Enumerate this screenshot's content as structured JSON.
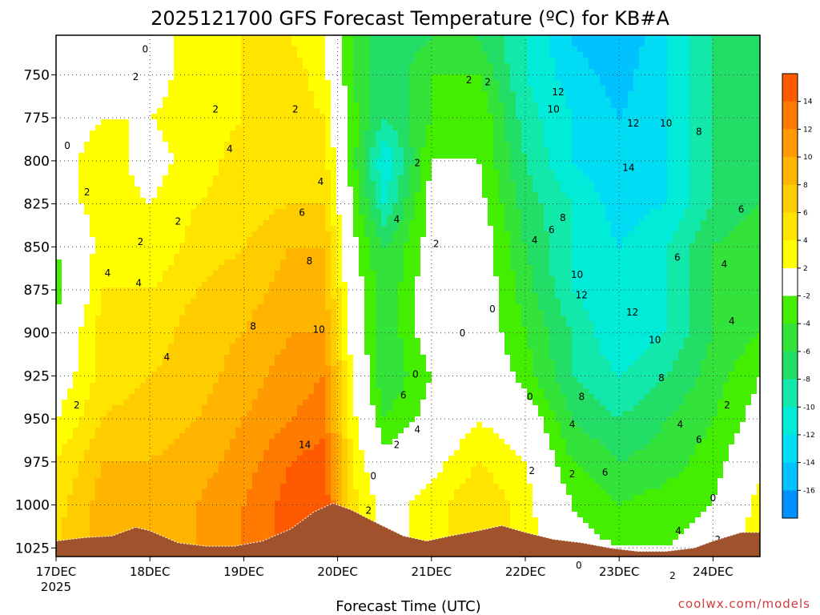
{
  "chart_data": {
    "type": "heatmap",
    "title": "2025121700 GFS Forecast Temperature (ºC) for KB#A",
    "xlabel": "Forecast Time (UTC)",
    "ylabel": "",
    "credit": "coolwx.com/models",
    "x_ticks": [
      "17DEC",
      "18DEC",
      "19DEC",
      "20DEC",
      "21DEC",
      "22DEC",
      "23DEC",
      "24DEC"
    ],
    "x_year": "2025",
    "xlim_days": [
      17.0,
      24.5
    ],
    "y_ticks": [
      750,
      775,
      800,
      825,
      850,
      875,
      900,
      925,
      950,
      975,
      1000,
      1025
    ],
    "ylim_hpa": [
      1030,
      727
    ],
    "colorbar": {
      "ticks": [
        "14",
        "12",
        "10",
        "8",
        "6",
        "4",
        "2",
        "-2",
        "-4",
        "-6",
        "-8",
        "-10",
        "-12",
        "-14",
        "-16"
      ],
      "colors": [
        "#ff5a00",
        "#ff7a00",
        "#ff9a00",
        "#ffb400",
        "#ffcc00",
        "#ffe400",
        "#ffff00",
        "#ffffff",
        "#44ee00",
        "#33e33a",
        "#22dd66",
        "#11e8aa",
        "#00ecd8",
        "#00dcf4",
        "#00c2ff",
        "#0090ff"
      ]
    },
    "columns_time": [
      17.0,
      17.5,
      18.0,
      18.5,
      19.0,
      19.5,
      19.85,
      20.15,
      20.5,
      21.0,
      21.5,
      22.0,
      22.5,
      23.0,
      23.5,
      24.0,
      24.5
    ],
    "levels_hpa": [
      730,
      750,
      775,
      800,
      825,
      850,
      875,
      900,
      925,
      950,
      975,
      1000,
      1025
    ],
    "temperature_c": [
      [
        -1,
        2,
        1,
        3,
        4,
        4,
        2,
        -4,
        -8,
        -6,
        -6,
        -10,
        -14,
        -16,
        -12,
        -8,
        -6
      ],
      [
        0,
        2,
        1,
        3,
        4,
        5,
        3,
        -4,
        -8,
        -4,
        -4,
        -10,
        -13,
        -15,
        -12,
        -8,
        -6
      ],
      [
        1,
        2,
        2,
        3,
        4,
        5,
        4,
        -3,
        -8,
        -4,
        -2,
        -9,
        -12,
        -14,
        -12,
        -8,
        -6
      ],
      [
        1,
        3,
        1,
        3,
        5,
        5,
        5,
        -3,
        -12,
        -2,
        -2,
        -8,
        -12,
        -14,
        -12,
        -8,
        -6
      ],
      [
        1,
        3,
        2,
        4,
        5,
        6,
        6,
        -2,
        -10,
        -1,
        -1,
        -7,
        -10,
        -13,
        -12,
        -8,
        -6
      ],
      [
        -2,
        3,
        2,
        5,
        6,
        8,
        8,
        -1,
        -6,
        -1,
        0,
        -6,
        -10,
        -12,
        -10,
        -6,
        -4
      ],
      [
        -3,
        4,
        4,
        6,
        7,
        9,
        9,
        0,
        -6,
        0,
        0,
        -5,
        -10,
        -12,
        -10,
        -6,
        -4
      ],
      [
        -1,
        5,
        5,
        7,
        8,
        10,
        10,
        1,
        -6,
        0,
        0,
        -4,
        -8,
        -12,
        -10,
        -6,
        -4
      ],
      [
        0,
        5,
        6,
        7,
        9,
        11,
        12,
        2,
        -6,
        -2,
        1,
        -3,
        -8,
        -10,
        -8,
        -5,
        -2
      ],
      [
        2,
        6,
        7,
        8,
        10,
        12,
        13,
        3,
        -4,
        -1,
        2,
        0,
        -6,
        -8,
        -6,
        -4,
        -1
      ],
      [
        4,
        8,
        8,
        9,
        11,
        14,
        15,
        4,
        -1,
        1,
        4,
        2,
        -4,
        -6,
        -5,
        -3,
        1
      ],
      [
        5,
        9,
        9,
        10,
        12,
        15,
        16,
        5,
        1,
        3,
        6,
        3,
        -2,
        -4,
        -3,
        -2,
        3
      ],
      [
        6,
        9,
        9,
        10,
        12,
        15,
        16,
        5,
        1,
        3,
        6,
        3,
        -1,
        -2,
        -2,
        -1,
        4
      ]
    ],
    "contour_labels": [
      {
        "t": 17.95,
        "p": 737,
        "v": "0"
      },
      {
        "t": 17.85,
        "p": 753,
        "v": "2"
      },
      {
        "t": 18.7,
        "p": 772,
        "v": "2"
      },
      {
        "t": 19.55,
        "p": 772,
        "v": "2"
      },
      {
        "t": 17.12,
        "p": 793,
        "v": "0"
      },
      {
        "t": 18.85,
        "p": 795,
        "v": "4"
      },
      {
        "t": 17.33,
        "p": 820,
        "v": "2"
      },
      {
        "t": 18.3,
        "p": 837,
        "v": "2"
      },
      {
        "t": 19.82,
        "p": 814,
        "v": "4"
      },
      {
        "t": 19.62,
        "p": 832,
        "v": "6"
      },
      {
        "t": 17.9,
        "p": 849,
        "v": "2"
      },
      {
        "t": 17.55,
        "p": 867,
        "v": "4"
      },
      {
        "t": 17.88,
        "p": 873,
        "v": "4"
      },
      {
        "t": 19.7,
        "p": 860,
        "v": "8"
      },
      {
        "t": 19.1,
        "p": 898,
        "v": "8"
      },
      {
        "t": 19.8,
        "p": 900,
        "v": "10"
      },
      {
        "t": 18.18,
        "p": 916,
        "v": "4"
      },
      {
        "t": 17.22,
        "p": 944,
        "v": "2"
      },
      {
        "t": 19.65,
        "p": 967,
        "v": "14"
      },
      {
        "t": 21.6,
        "p": 756,
        "v": "2"
      },
      {
        "t": 21.4,
        "p": 755,
        "v": "2"
      },
      {
        "t": 20.85,
        "p": 803,
        "v": "2"
      },
      {
        "t": 20.63,
        "p": 836,
        "v": "4"
      },
      {
        "t": 21.05,
        "p": 850,
        "v": "2"
      },
      {
        "t": 21.65,
        "p": 888,
        "v": "0"
      },
      {
        "t": 21.33,
        "p": 902,
        "v": "0"
      },
      {
        "t": 20.83,
        "p": 926,
        "v": "0"
      },
      {
        "t": 20.7,
        "p": 938,
        "v": "6"
      },
      {
        "t": 20.85,
        "p": 958,
        "v": "4"
      },
      {
        "t": 20.63,
        "p": 967,
        "v": "2"
      },
      {
        "t": 20.38,
        "p": 985,
        "v": "0"
      },
      {
        "t": 20.33,
        "p": 1005,
        "v": "2"
      },
      {
        "t": 22.35,
        "p": 762,
        "v": "12"
      },
      {
        "t": 22.3,
        "p": 772,
        "v": "10"
      },
      {
        "t": 22.4,
        "p": 835,
        "v": "8"
      },
      {
        "t": 22.28,
        "p": 842,
        "v": "6"
      },
      {
        "t": 22.1,
        "p": 848,
        "v": "4"
      },
      {
        "t": 22.55,
        "p": 868,
        "v": "10"
      },
      {
        "t": 22.6,
        "p": 880,
        "v": "12"
      },
      {
        "t": 23.15,
        "p": 780,
        "v": "12"
      },
      {
        "t": 23.5,
        "p": 780,
        "v": "10"
      },
      {
        "t": 23.85,
        "p": 785,
        "v": "8"
      },
      {
        "t": 23.1,
        "p": 806,
        "v": "14"
      },
      {
        "t": 24.3,
        "p": 830,
        "v": "6"
      },
      {
        "t": 23.62,
        "p": 858,
        "v": "6"
      },
      {
        "t": 24.12,
        "p": 862,
        "v": "4"
      },
      {
        "t": 23.14,
        "p": 890,
        "v": "12"
      },
      {
        "t": 23.38,
        "p": 906,
        "v": "10"
      },
      {
        "t": 24.2,
        "p": 895,
        "v": "4"
      },
      {
        "t": 23.45,
        "p": 928,
        "v": "8"
      },
      {
        "t": 22.6,
        "p": 939,
        "v": "8"
      },
      {
        "t": 22.05,
        "p": 939,
        "v": "0"
      },
      {
        "t": 22.5,
        "p": 955,
        "v": "4"
      },
      {
        "t": 23.65,
        "p": 955,
        "v": "4"
      },
      {
        "t": 23.85,
        "p": 964,
        "v": "6"
      },
      {
        "t": 24.15,
        "p": 944,
        "v": "2"
      },
      {
        "t": 22.85,
        "p": 983,
        "v": "6"
      },
      {
        "t": 22.07,
        "p": 982,
        "v": "2"
      },
      {
        "t": 22.5,
        "p": 984,
        "v": "2"
      },
      {
        "t": 23.63,
        "p": 1017,
        "v": "4"
      },
      {
        "t": 24.0,
        "p": 998,
        "v": "0"
      },
      {
        "t": 24.05,
        "p": 1022,
        "v": "2"
      },
      {
        "t": 23.57,
        "p": 1043,
        "v": "2"
      },
      {
        "t": 22.57,
        "p": 1037,
        "v": "0"
      }
    ],
    "surface_pressure": {
      "times": [
        17.0,
        17.3,
        17.6,
        17.85,
        18.0,
        18.3,
        18.6,
        18.9,
        19.2,
        19.5,
        19.75,
        19.95,
        20.15,
        20.4,
        20.7,
        20.95,
        21.2,
        21.5,
        21.75,
        22.0,
        22.3,
        22.6,
        22.9,
        23.2,
        23.5,
        23.8,
        24.0,
        24.3,
        24.5
      ],
      "pressures_hpa": [
        1021,
        1019,
        1018,
        1013,
        1015,
        1022,
        1024,
        1024,
        1021,
        1014,
        1004,
        999,
        1003,
        1010,
        1018,
        1021,
        1018,
        1015,
        1012,
        1016,
        1020,
        1022,
        1025,
        1027,
        1027,
        1025,
        1021,
        1016,
        1016
      ]
    },
    "legend": "colorbar-right",
    "grid": true
  }
}
